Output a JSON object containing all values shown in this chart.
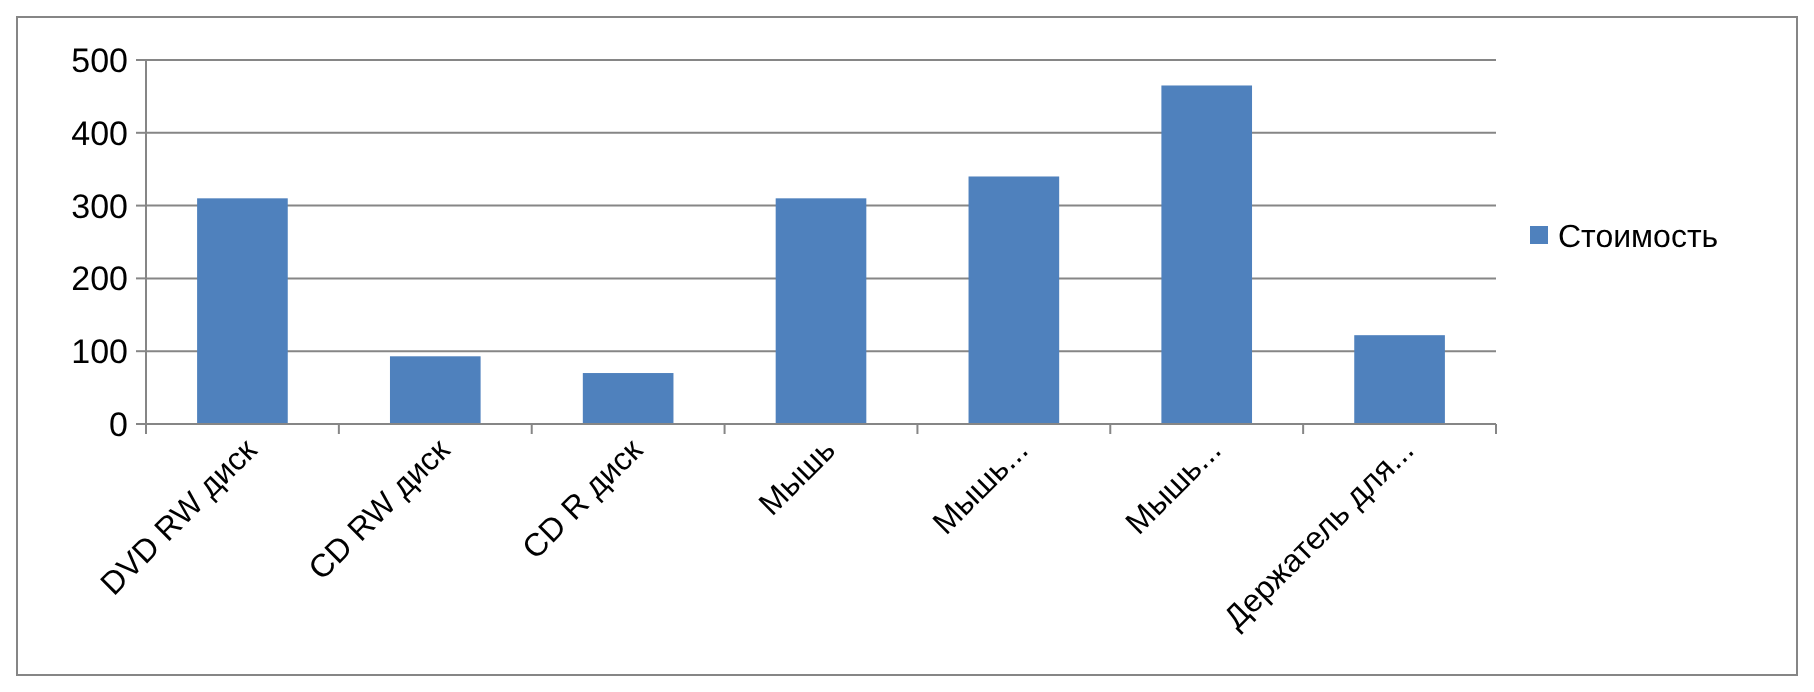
{
  "chart_data": {
    "type": "bar",
    "categories": [
      "DVD RW диск",
      "CD RW диск",
      "CD R диск",
      "Мышь",
      "Мышь...",
      "Мышь...",
      "Держатель для..."
    ],
    "series": [
      {
        "name": "Стоимость",
        "color": "#4f81bd",
        "values": [
          310,
          93,
          70,
          310,
          340,
          465,
          122
        ]
      }
    ],
    "ylim": [
      0,
      500
    ],
    "yticks": [
      0,
      100,
      200,
      300,
      400,
      500
    ],
    "grid": "y",
    "legend": "right"
  }
}
